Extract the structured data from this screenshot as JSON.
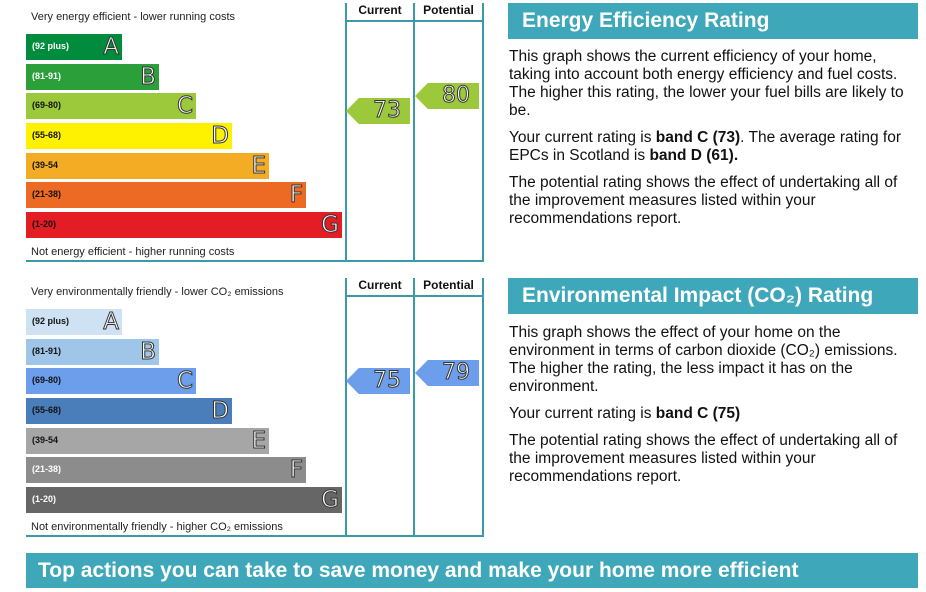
{
  "energy": {
    "top_note": "Very energy efficient - lower running costs",
    "bottom_note": "Not energy efficient - higher running costs",
    "col_current": "Current",
    "col_potential": "Potential",
    "bands": [
      {
        "range": "(92 plus)",
        "letter": "A",
        "color": "#008c3c",
        "text": "#fff"
      },
      {
        "range": "(81-91)",
        "letter": "B",
        "color": "#2a9f3a",
        "text": "#fff"
      },
      {
        "range": "(69-80)",
        "letter": "C",
        "color": "#9cc93c",
        "text": "#111"
      },
      {
        "range": "(55-68)",
        "letter": "D",
        "color": "#fff200",
        "text": "#111"
      },
      {
        "range": "(39-54",
        "letter": "E",
        "color": "#f5ac25",
        "text": "#111"
      },
      {
        "range": "(21-38)",
        "letter": "F",
        "color": "#ec6a23",
        "text": "#111"
      },
      {
        "range": "(1-20)",
        "letter": "G",
        "color": "#e31d23",
        "text": "#111"
      }
    ],
    "current": "73",
    "current_color": "#9cc93c",
    "potential": "80",
    "potential_color": "#9cc93c"
  },
  "environment": {
    "top_note": "Very environmentally friendly - lower CO₂ emissions",
    "bottom_note": "Not environmentally friendly - higher CO₂ emissions",
    "col_current": "Current",
    "col_potential": "Potential",
    "bands": [
      {
        "range": "(92 plus)",
        "letter": "A",
        "color": "#cfe2f3",
        "text": "#111"
      },
      {
        "range": "(81-91)",
        "letter": "B",
        "color": "#9fc5e8",
        "text": "#111"
      },
      {
        "range": "(69-80)",
        "letter": "C",
        "color": "#6d9eeb",
        "text": "#111"
      },
      {
        "range": "(55-68)",
        "letter": "D",
        "color": "#4a7ebb",
        "text": "#111"
      },
      {
        "range": "(39-54",
        "letter": "E",
        "color": "#a6a6a6",
        "text": "#111"
      },
      {
        "range": "(21-38)",
        "letter": "F",
        "color": "#8c8c8c",
        "text": "#fff"
      },
      {
        "range": "(1-20)",
        "letter": "G",
        "color": "#666666",
        "text": "#fff"
      }
    ],
    "current": "75",
    "current_color": "#6d9eeb",
    "potential": "79",
    "potential_color": "#6d9eeb"
  },
  "eer": {
    "title": "Energy Efficiency Rating",
    "p1": "This graph shows the current efficiency of your home, taking into account both energy efficiency and fuel costs. The higher this rating, the lower your fuel bills are likely to be.",
    "p2_a": "Your current rating is ",
    "p2_b": "band C (73)",
    "p2_c": ". The average rating for EPCs in Scotland is ",
    "p2_d": "band D (61).",
    "p3": "The potential rating shows the effect of undertaking all of the improvement measures listed within your recommendations report."
  },
  "eir": {
    "title": "Environmental Impact (CO₂) Rating",
    "p1": "This graph shows the effect of your home on the environment in terms of carbon dioxide (CO₂) emissions. The higher the rating, the less impact it has on the environment.",
    "p2_a": "Your current rating is ",
    "p2_b": "band C (75)",
    "p3": "The potential rating shows the effect of undertaking all of the improvement measures listed within your recommendations report."
  },
  "banner": "Top actions you can take to save money and make your home more efficient"
}
